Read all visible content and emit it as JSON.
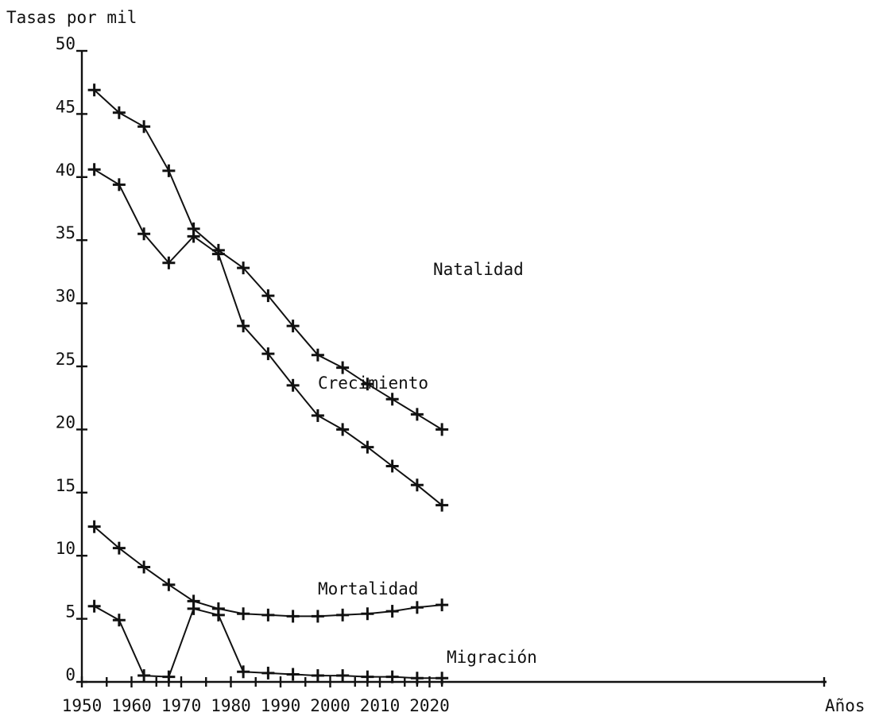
{
  "chart_data": {
    "type": "line",
    "ylabel": "Tasas por mil",
    "xlabel": "Años",
    "xlim": [
      1950,
      2025
    ],
    "ylim": [
      0,
      50
    ],
    "x_ticks": [
      "1950",
      "1960",
      "1970",
      "1980",
      "1990",
      "2000",
      "2010",
      "2020"
    ],
    "y_ticks": [
      "0",
      "5",
      "10",
      "15",
      "20",
      "25",
      "30",
      "35",
      "40",
      "45",
      "50"
    ],
    "minor_x_ticks": [
      1955,
      1965,
      1967.5,
      1975,
      1985,
      1995,
      2005,
      2007.5,
      2015,
      2017.5,
      2022.5
    ],
    "x": [
      1952.5,
      1957.5,
      1962.5,
      1967.5,
      1972.5,
      1977.5,
      1982.5,
      1987.5,
      1992.5,
      1997.5,
      2002.5,
      2007.5,
      2012.5,
      2017.5,
      2022.5
    ],
    "series": [
      {
        "name": "Natalidad",
        "values": [
          46.9,
          45.1,
          44.0,
          40.5,
          35.9,
          34.2,
          32.8,
          30.6,
          28.2,
          25.9,
          24.9,
          23.6,
          22.4,
          21.2,
          20.0
        ]
      },
      {
        "name": "Crecimiento",
        "values": [
          40.6,
          39.4,
          35.5,
          33.2,
          35.3,
          33.9,
          28.2,
          26.0,
          23.5,
          21.1,
          20.0,
          18.6,
          17.1,
          15.6,
          14.0
        ]
      },
      {
        "name": "Mortalidad",
        "values": [
          12.3,
          10.6,
          9.1,
          7.7,
          6.4,
          5.8,
          5.4,
          5.3,
          5.2,
          5.2,
          5.3,
          5.4,
          5.6,
          5.9,
          6.1
        ]
      },
      {
        "name": "Migración",
        "values": [
          6.0,
          4.9,
          0.5,
          0.4,
          5.8,
          5.3,
          0.8,
          0.7,
          0.6,
          0.5,
          0.5,
          0.4,
          0.4,
          0.3,
          0.3
        ]
      }
    ],
    "grid": false
  }
}
